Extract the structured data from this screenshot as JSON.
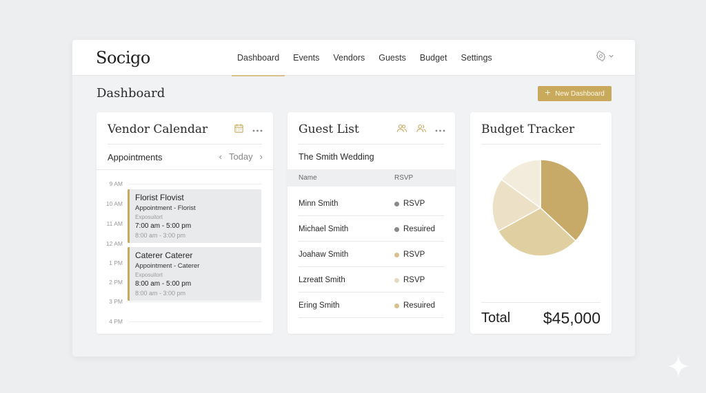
{
  "app": {
    "logo": "Socigo",
    "nav": [
      "Dashboard",
      "Events",
      "Vendors",
      "Guests",
      "Budget",
      "Settings"
    ],
    "active_nav": "Dashboard"
  },
  "page": {
    "title": "Dashboard",
    "new_button": "New Dashboard"
  },
  "vendor_calendar": {
    "title": "Vendor Calendar",
    "subheading": "Appointments",
    "today_label": "Today",
    "hours": [
      "9 AM",
      "10 AM",
      "11 AM",
      "12 AM",
      "1 PM",
      "2 PM",
      "3 PM",
      "4 PM"
    ],
    "appointments": [
      {
        "title": "Florist Flovist",
        "subtitle": "Appointment - Florist",
        "location": "Exposuitort",
        "time": "7:00 am - 5:00 pm",
        "time_alt": "8:00 am - 3:00 pm"
      },
      {
        "title": "Caterer Caterer",
        "subtitle": "Appointment - Caterer",
        "location": "Exposuitort",
        "time": "8:00 am - 5:00 pm",
        "time_alt": "8:00 am - 3:00 pm"
      }
    ]
  },
  "guest_list": {
    "title": "Guest List",
    "event": "The Smith Wedding",
    "columns": [
      "Name",
      "RSVP"
    ],
    "rows": [
      {
        "name": "Minn Smith",
        "rsvp": "RSVP",
        "dot_color": "#8a8a8a"
      },
      {
        "name": "Michael Smith",
        "rsvp": "Resuired",
        "dot_color": "#8a8a8a"
      },
      {
        "name": "Joahaw Smith",
        "rsvp": "RSVP",
        "dot_color": "#d6c18e"
      },
      {
        "name": "Lzreatt Smith",
        "rsvp": "RSVP",
        "dot_color": "#e3dac4"
      },
      {
        "name": "Ering Smith",
        "rsvp": "Resuired",
        "dot_color": "#d6c18e"
      }
    ]
  },
  "budget": {
    "title": "Budget Tracker",
    "total_label": "Total",
    "total_value": "$45,000",
    "slices": [
      {
        "value": 37,
        "color": "#c7a968"
      },
      {
        "value": 30,
        "color": "#e0cfa0"
      },
      {
        "value": 18,
        "color": "#ece1c6"
      },
      {
        "value": 15,
        "color": "#f3ecdc"
      }
    ]
  },
  "colors": {
    "accent": "#c9a95c",
    "background": "#eceef0"
  }
}
